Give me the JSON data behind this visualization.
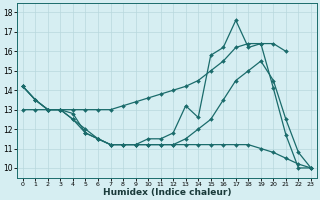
{
  "xlabel": "Humidex (Indice chaleur)",
  "xlim": [
    -0.5,
    23.5
  ],
  "ylim": [
    9.5,
    18.5
  ],
  "xticks": [
    0,
    1,
    2,
    3,
    4,
    5,
    6,
    7,
    8,
    9,
    10,
    11,
    12,
    13,
    14,
    15,
    16,
    17,
    18,
    19,
    20,
    21,
    22,
    23
  ],
  "yticks": [
    10,
    11,
    12,
    13,
    14,
    15,
    16,
    17,
    18
  ],
  "background_color": "#d6eef2",
  "grid_color": "#b8d8dd",
  "line_color": "#1a6b6b",
  "series1": [
    14.2,
    13.5,
    13.0,
    13.0,
    12.8,
    11.8,
    11.5,
    11.2,
    11.2,
    11.2,
    11.5,
    11.5,
    11.8,
    13.2,
    12.6,
    15.8,
    16.2,
    17.6,
    16.2,
    16.4,
    14.1,
    11.7,
    10.0,
    10.0
  ],
  "series2": [
    13.0,
    13.0,
    13.0,
    13.0,
    13.0,
    13.0,
    13.0,
    13.0,
    13.2,
    13.4,
    13.6,
    13.8,
    14.0,
    14.2,
    14.5,
    15.0,
    15.5,
    16.2,
    16.4,
    16.4,
    16.4,
    16.0,
    null,
    null
  ],
  "series3": [
    14.2,
    13.5,
    13.0,
    13.0,
    12.5,
    12.0,
    11.5,
    11.2,
    11.2,
    11.2,
    11.2,
    11.2,
    11.2,
    11.5,
    12.0,
    12.5,
    13.5,
    14.5,
    15.0,
    15.5,
    14.5,
    12.5,
    10.8,
    10.0
  ],
  "series4": [
    14.2,
    13.5,
    13.0,
    13.0,
    12.5,
    11.8,
    11.5,
    11.2,
    11.2,
    11.2,
    11.2,
    11.2,
    11.2,
    11.2,
    11.2,
    11.2,
    11.2,
    11.2,
    11.2,
    11.0,
    10.8,
    10.5,
    10.2,
    10.0
  ]
}
